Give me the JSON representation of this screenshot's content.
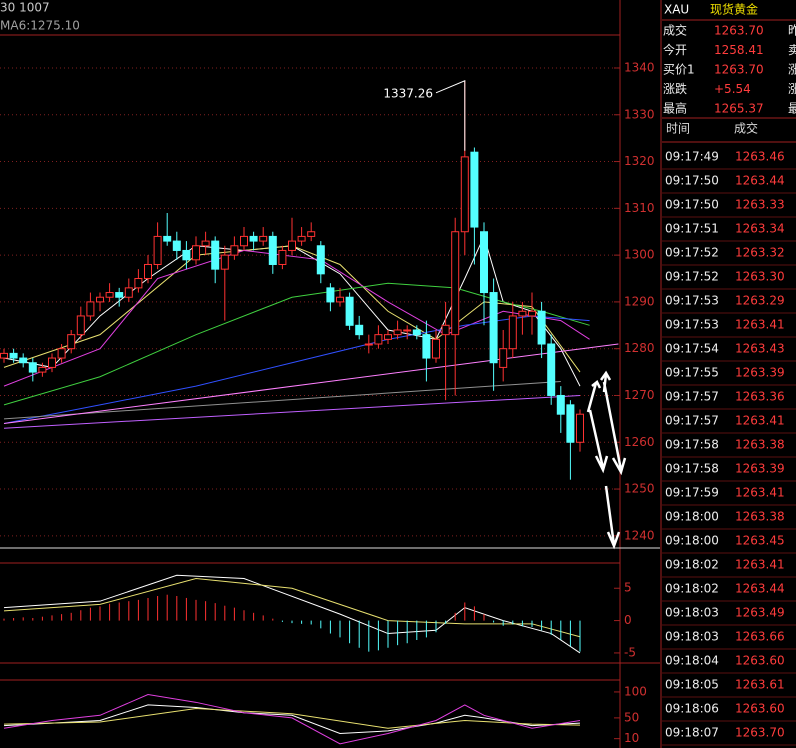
{
  "header": {
    "top": "30 1007",
    "ma": "MA6:1275.10"
  },
  "price_chart": {
    "ylim": [
      1237.4,
      1347.05
    ],
    "yticks": [
      1240,
      1250,
      1260,
      1270,
      1280,
      1290,
      1300,
      1310,
      1320,
      1330,
      1340
    ],
    "up_color": "#ff3232",
    "down_color": "#54ffff",
    "candles": [
      [
        1278,
        1280,
        1277,
        1279
      ],
      [
        1279,
        1280,
        1277,
        1278
      ],
      [
        1278,
        1279,
        1276,
        1277
      ],
      [
        1277,
        1278,
        1273,
        1275
      ],
      [
        1275,
        1277,
        1274,
        1276
      ],
      [
        1276,
        1279,
        1275,
        1278
      ],
      [
        1278,
        1281,
        1277,
        1280
      ],
      [
        1280,
        1284,
        1279,
        1283
      ],
      [
        1283,
        1289,
        1282,
        1287
      ],
      [
        1287,
        1292,
        1286,
        1290
      ],
      [
        1290,
        1292,
        1288,
        1291
      ],
      [
        1291,
        1294,
        1290,
        1292
      ],
      [
        1292,
        1293,
        1289,
        1291
      ],
      [
        1291,
        1295,
        1290,
        1293
      ],
      [
        1293,
        1297,
        1292,
        1295
      ],
      [
        1295,
        1300,
        1294,
        1298
      ],
      [
        1298,
        1307,
        1297,
        1304
      ],
      [
        1304,
        1309,
        1302,
        1303
      ],
      [
        1303,
        1305,
        1299,
        1301
      ],
      [
        1301,
        1303,
        1297,
        1299
      ],
      [
        1299,
        1304,
        1298,
        1302
      ],
      [
        1302,
        1305,
        1300,
        1303
      ],
      [
        1303,
        1304,
        1294,
        1297
      ],
      [
        1297,
        1302,
        1286,
        1300
      ],
      [
        1300,
        1304,
        1299,
        1302
      ],
      [
        1302,
        1306,
        1301,
        1304
      ],
      [
        1304,
        1305,
        1301,
        1303
      ],
      [
        1303,
        1306,
        1302,
        1304
      ],
      [
        1304,
        1305,
        1296,
        1298
      ],
      [
        1298,
        1302,
        1297,
        1301
      ],
      [
        1301,
        1308,
        1300,
        1303
      ],
      [
        1303,
        1306,
        1302,
        1304
      ],
      [
        1304,
        1307,
        1303,
        1305
      ],
      [
        1302,
        1303,
        1294,
        1296
      ],
      [
        1293,
        1294,
        1288,
        1290
      ],
      [
        1290,
        1293,
        1289,
        1291
      ],
      [
        1291,
        1292,
        1284,
        1285
      ],
      [
        1285,
        1287,
        1282,
        1283
      ],
      [
        1281,
        1283,
        1279,
        1281
      ],
      [
        1281,
        1285,
        1280,
        1283
      ],
      [
        1282,
        1284,
        1281,
        1283
      ],
      [
        1283,
        1286,
        1282,
        1284
      ],
      [
        1284,
        1285,
        1282,
        1284
      ],
      [
        1284,
        1285,
        1282,
        1283
      ],
      [
        1283,
        1286,
        1273,
        1278
      ],
      [
        1278,
        1284,
        1277,
        1282
      ],
      [
        1283,
        1290,
        1269,
        1285
      ],
      [
        1283,
        1308,
        1270,
        1305
      ],
      [
        1305,
        1337.26,
        1300,
        1321
      ],
      [
        1322,
        1323,
        1298,
        1306
      ],
      [
        1305,
        1307,
        1285,
        1292
      ],
      [
        1292,
        1295,
        1271,
        1277
      ],
      [
        1276,
        1284,
        1273,
        1280
      ],
      [
        1280,
        1290,
        1278,
        1287
      ],
      [
        1287,
        1290,
        1283,
        1288
      ],
      [
        1287,
        1292,
        1283,
        1288
      ],
      [
        1288,
        1290,
        1278,
        1281
      ],
      [
        1281,
        1283,
        1268,
        1270
      ],
      [
        1270,
        1272,
        1262,
        1266
      ],
      [
        1268,
        1269,
        1252,
        1260
      ],
      [
        1260,
        1267,
        1258,
        1266
      ]
    ],
    "high_label": "1337.26",
    "lines": [
      {
        "color": "#ffffff",
        "x": [
          0,
          5,
          10,
          15,
          20,
          25,
          30,
          35,
          40,
          45,
          48,
          50,
          52,
          55,
          58,
          60
        ],
        "values": [
          1278,
          1276,
          1287,
          1295,
          1302,
          1301,
          1302,
          1296,
          1284,
          1282,
          1295,
          1304,
          1290,
          1288,
          1280,
          1272
        ]
      },
      {
        "color": "#e8e070",
        "x": [
          0,
          10,
          20,
          30,
          35,
          40,
          45,
          50,
          55,
          60
        ],
        "values": [
          1276,
          1283,
          1300,
          1302,
          1298,
          1288,
          1282,
          1290,
          1289,
          1275
        ]
      },
      {
        "color": "#e040e0",
        "x": [
          0,
          10,
          16,
          25,
          33,
          40,
          46,
          52,
          58,
          61
        ],
        "values": [
          1272,
          1280,
          1295,
          1301,
          1299,
          1290,
          1283,
          1288,
          1286,
          1282
        ]
      },
      {
        "color": "#40d040",
        "x": [
          0,
          10,
          20,
          30,
          40,
          47,
          52,
          56,
          61
        ],
        "values": [
          1268,
          1274,
          1283,
          1291,
          1294,
          1293,
          1290,
          1288,
          1285
        ]
      },
      {
        "color": "#3050ff",
        "x": [
          0,
          10,
          20,
          30,
          40,
          48,
          55,
          61
        ],
        "values": [
          1264,
          1268,
          1272,
          1277,
          1282,
          1285,
          1287,
          1286
        ]
      },
      {
        "color": "#909090",
        "x": [
          0,
          58
        ],
        "values": [
          1265,
          1273
        ]
      },
      {
        "color": "#ff80ff",
        "x": [
          0,
          64
        ],
        "values": [
          1264,
          1281
        ]
      },
      {
        "color": "#c060ff",
        "x": [
          0,
          60
        ],
        "values": [
          1263,
          1270
        ]
      }
    ]
  },
  "macd_chart": {
    "ylim": [
      -6.4,
      8.9
    ],
    "yticks": [
      5,
      0,
      -5
    ],
    "bars": [
      0.3,
      0.4,
      0.5,
      0.4,
      0.6,
      0.8,
      1,
      1.2,
      1.6,
      2,
      2.2,
      2.6,
      2.8,
      3,
      3.2,
      3.5,
      3.8,
      4,
      3.8,
      3.5,
      3.2,
      3,
      2.7,
      2.3,
      2,
      1.6,
      1.2,
      0.8,
      0.3,
      -0.2,
      -0.4,
      -0.5,
      -0.6,
      -1.2,
      -2,
      -2.6,
      -3.5,
      -4.2,
      -4.8,
      -4.6,
      -4.2,
      -3.8,
      -3.5,
      -3,
      -2.6,
      -1.8,
      -0.5,
      1.2,
      2.8,
      2.2,
      1,
      -0.3,
      -0.8,
      -0.6,
      -0.9,
      -1,
      -1.5,
      -2.2,
      -3,
      -4,
      -4.8
    ],
    "lines": [
      {
        "color": "#ffffff",
        "x": [
          0,
          10,
          18,
          25,
          35,
          40,
          45,
          48,
          52,
          57,
          60
        ],
        "values": [
          2,
          3,
          7,
          6.5,
          1,
          -2,
          -1.5,
          2,
          0,
          -2,
          -5
        ]
      },
      {
        "color": "#e8e070",
        "x": [
          0,
          10,
          20,
          30,
          40,
          48,
          55,
          60
        ],
        "values": [
          1.5,
          2.5,
          6.5,
          5,
          0,
          -0.5,
          -0.5,
          -2.5
        ]
      }
    ]
  },
  "kdj_chart": {
    "ylim": [
      -8,
      123
    ],
    "yticks": [
      100,
      50,
      10
    ],
    "lines": [
      {
        "color": "#ffffff",
        "x": [
          0,
          5,
          10,
          15,
          20,
          25,
          30,
          35,
          40,
          45,
          48,
          50,
          55,
          60
        ],
        "values": [
          35,
          40,
          45,
          75,
          70,
          60,
          55,
          20,
          25,
          40,
          55,
          50,
          35,
          40
        ]
      },
      {
        "color": "#e8e070",
        "x": [
          0,
          10,
          20,
          30,
          40,
          48,
          55,
          60
        ],
        "values": [
          38,
          42,
          68,
          58,
          30,
          45,
          38,
          36
        ]
      },
      {
        "color": "#e040e0",
        "x": [
          0,
          5,
          10,
          15,
          20,
          25,
          30,
          35,
          40,
          45,
          48,
          50,
          55,
          60
        ],
        "values": [
          30,
          45,
          55,
          95,
          80,
          60,
          50,
          0,
          20,
          45,
          75,
          55,
          30,
          45
        ]
      }
    ]
  },
  "quote": {
    "symbol": "XAU",
    "name": "现货黄金",
    "rows": [
      {
        "label": "成交",
        "value": "1263.70",
        "extra": "昨"
      },
      {
        "label": "今开",
        "value": "1258.41",
        "extra": "卖"
      },
      {
        "label": "买价1",
        "value": "1263.70",
        "extra": "涨"
      },
      {
        "label": "涨跌",
        "value": "+5.54",
        "extra": "涨"
      },
      {
        "label": "最高",
        "value": "1265.37",
        "extra": "最"
      }
    ]
  },
  "trades": {
    "headers": [
      "时间",
      "成交"
    ],
    "rows": [
      [
        "09:17:49",
        "1263.46"
      ],
      [
        "09:17:50",
        "1263.44"
      ],
      [
        "09:17:50",
        "1263.33"
      ],
      [
        "09:17:51",
        "1263.34"
      ],
      [
        "09:17:52",
        "1263.32"
      ],
      [
        "09:17:52",
        "1263.30"
      ],
      [
        "09:17:53",
        "1263.29"
      ],
      [
        "09:17:53",
        "1263.41"
      ],
      [
        "09:17:54",
        "1263.43"
      ],
      [
        "09:17:55",
        "1263.39"
      ],
      [
        "09:17:57",
        "1263.36"
      ],
      [
        "09:17:57",
        "1263.41"
      ],
      [
        "09:17:58",
        "1263.38"
      ],
      [
        "09:17:58",
        "1263.39"
      ],
      [
        "09:17:59",
        "1263.41"
      ],
      [
        "09:18:00",
        "1263.38"
      ],
      [
        "09:18:00",
        "1263.45"
      ],
      [
        "09:18:02",
        "1263.41"
      ],
      [
        "09:18:02",
        "1263.44"
      ],
      [
        "09:18:03",
        "1263.49"
      ],
      [
        "09:18:03",
        "1263.66"
      ],
      [
        "09:18:04",
        "1263.60"
      ],
      [
        "09:18:05",
        "1263.61"
      ],
      [
        "09:18:06",
        "1263.60"
      ],
      [
        "09:18:07",
        "1263.70"
      ]
    ]
  }
}
